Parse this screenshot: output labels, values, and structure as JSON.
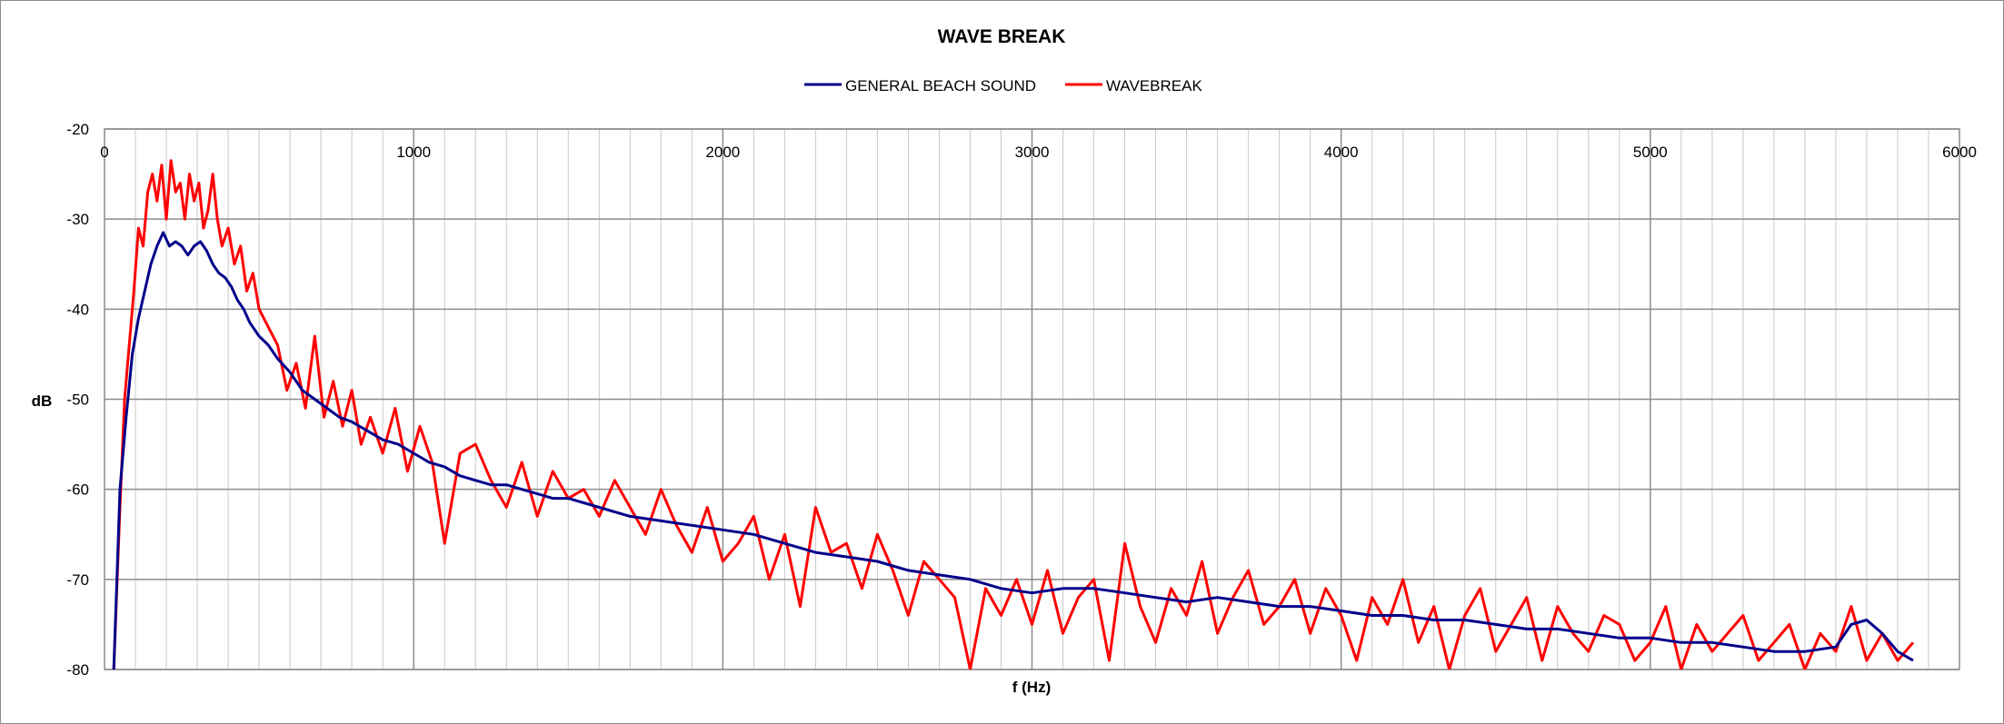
{
  "chart_data": {
    "type": "line",
    "title": "WAVE BREAK",
    "xlabel": "f (Hz)",
    "ylabel": "dB",
    "xlim": [
      0,
      6000
    ],
    "ylim": [
      -80,
      -20
    ],
    "x_ticks": [
      0,
      1000,
      2000,
      3000,
      4000,
      5000,
      6000
    ],
    "y_ticks": [
      -20,
      -30,
      -40,
      -50,
      -60,
      -70,
      -80
    ],
    "x_minor_grid_step": 100,
    "grid": true,
    "legend_position": "top-center",
    "series": [
      {
        "name": "GENERAL BEACH SOUND",
        "color": "#00008b",
        "x": [
          30,
          50,
          70,
          90,
          110,
          130,
          150,
          170,
          190,
          210,
          230,
          250,
          270,
          290,
          310,
          330,
          350,
          370,
          390,
          410,
          430,
          450,
          470,
          500,
          530,
          560,
          600,
          640,
          680,
          720,
          760,
          800,
          850,
          900,
          950,
          1000,
          1050,
          1100,
          1150,
          1200,
          1250,
          1300,
          1350,
          1400,
          1450,
          1500,
          1550,
          1600,
          1700,
          1800,
          1900,
          2000,
          2100,
          2200,
          2300,
          2400,
          2500,
          2600,
          2700,
          2800,
          2900,
          3000,
          3100,
          3200,
          3300,
          3400,
          3500,
          3600,
          3700,
          3800,
          3900,
          4000,
          4100,
          4200,
          4300,
          4400,
          4500,
          4600,
          4700,
          4800,
          4900,
          5000,
          5100,
          5200,
          5300,
          5400,
          5500,
          5600,
          5650,
          5700,
          5750,
          5800,
          5850
        ],
        "y": [
          -80,
          -60,
          -52,
          -45,
          -41,
          -38,
          -35,
          -33,
          -31.5,
          -33,
          -32.5,
          -33,
          -34,
          -33,
          -32.5,
          -33.5,
          -35,
          -36,
          -36.5,
          -37.5,
          -39,
          -40,
          -41.5,
          -43,
          -44,
          -45.5,
          -47,
          -49,
          -50,
          -51,
          -52,
          -52.5,
          -53.5,
          -54.5,
          -55,
          -56,
          -57,
          -57.5,
          -58.5,
          -59,
          -59.5,
          -59.5,
          -60,
          -60.5,
          -61,
          -61,
          -61.5,
          -62,
          -63,
          -63.5,
          -64,
          -64.5,
          -65,
          -66,
          -67,
          -67.5,
          -68,
          -69,
          -69.5,
          -70,
          -71,
          -71.5,
          -71,
          -71,
          -71.5,
          -72,
          -72.5,
          -72,
          -72.5,
          -73,
          -73,
          -73.5,
          -74,
          -74,
          -74.5,
          -74.5,
          -75,
          -75.5,
          -75.5,
          -76,
          -76.5,
          -76.5,
          -77,
          -77,
          -77.5,
          -78,
          -78,
          -77.5,
          -75,
          -74.5,
          -76,
          -78,
          -79
        ]
      },
      {
        "name": "WAVEBREAK",
        "color": "#ff0000",
        "x": [
          30,
          50,
          65,
          80,
          95,
          110,
          125,
          140,
          155,
          170,
          185,
          200,
          215,
          230,
          245,
          260,
          275,
          290,
          305,
          320,
          335,
          350,
          365,
          380,
          400,
          420,
          440,
          460,
          480,
          500,
          530,
          560,
          590,
          620,
          650,
          680,
          710,
          740,
          770,
          800,
          830,
          860,
          900,
          940,
          980,
          1020,
          1060,
          1100,
          1150,
          1200,
          1250,
          1300,
          1350,
          1400,
          1450,
          1500,
          1550,
          1600,
          1650,
          1700,
          1750,
          1800,
          1850,
          1900,
          1950,
          2000,
          2050,
          2100,
          2150,
          2200,
          2250,
          2300,
          2350,
          2400,
          2450,
          2500,
          2550,
          2600,
          2650,
          2700,
          2750,
          2800,
          2850,
          2900,
          2950,
          3000,
          3050,
          3100,
          3150,
          3200,
          3250,
          3300,
          3350,
          3400,
          3450,
          3500,
          3550,
          3600,
          3650,
          3700,
          3750,
          3800,
          3850,
          3900,
          3950,
          4000,
          4050,
          4100,
          4150,
          4200,
          4250,
          4300,
          4350,
          4400,
          4450,
          4500,
          4550,
          4600,
          4650,
          4700,
          4750,
          4800,
          4850,
          4900,
          4950,
          5000,
          5050,
          5100,
          5150,
          5200,
          5250,
          5300,
          5350,
          5400,
          5450,
          5500,
          5550,
          5600,
          5650,
          5700,
          5750,
          5800,
          5850
        ],
        "y": [
          -80,
          -62,
          -50,
          -44,
          -38,
          -31,
          -33,
          -27,
          -25,
          -28,
          -24,
          -30,
          -23.5,
          -27,
          -26,
          -30,
          -25,
          -28,
          -26,
          -31,
          -29,
          -25,
          -30,
          -33,
          -31,
          -35,
          -33,
          -38,
          -36,
          -40,
          -42,
          -44,
          -49,
          -46,
          -51,
          -43,
          -52,
          -48,
          -53,
          -49,
          -55,
          -52,
          -56,
          -51,
          -58,
          -53,
          -57,
          -66,
          -56,
          -55,
          -59,
          -62,
          -57,
          -63,
          -58,
          -61,
          -60,
          -63,
          -59,
          -62,
          -65,
          -60,
          -64,
          -67,
          -62,
          -68,
          -66,
          -63,
          -70,
          -65,
          -73,
          -62,
          -67,
          -66,
          -71,
          -65,
          -69,
          -74,
          -68,
          -70,
          -72,
          -80,
          -71,
          -74,
          -70,
          -75,
          -69,
          -76,
          -72,
          -70,
          -79,
          -66,
          -73,
          -77,
          -71,
          -74,
          -68,
          -76,
          -72,
          -69,
          -75,
          -73,
          -70,
          -76,
          -71,
          -74,
          -79,
          -72,
          -75,
          -70,
          -77,
          -73,
          -80,
          -74,
          -71,
          -78,
          -75,
          -72,
          -79,
          -73,
          -76,
          -78,
          -74,
          -75,
          -79,
          -77,
          -73,
          -80,
          -75,
          -78,
          -76,
          -74,
          -79,
          -77,
          -75,
          -80,
          -76,
          -78,
          -73,
          -79,
          -76,
          -79,
          -77
        ]
      }
    ]
  }
}
